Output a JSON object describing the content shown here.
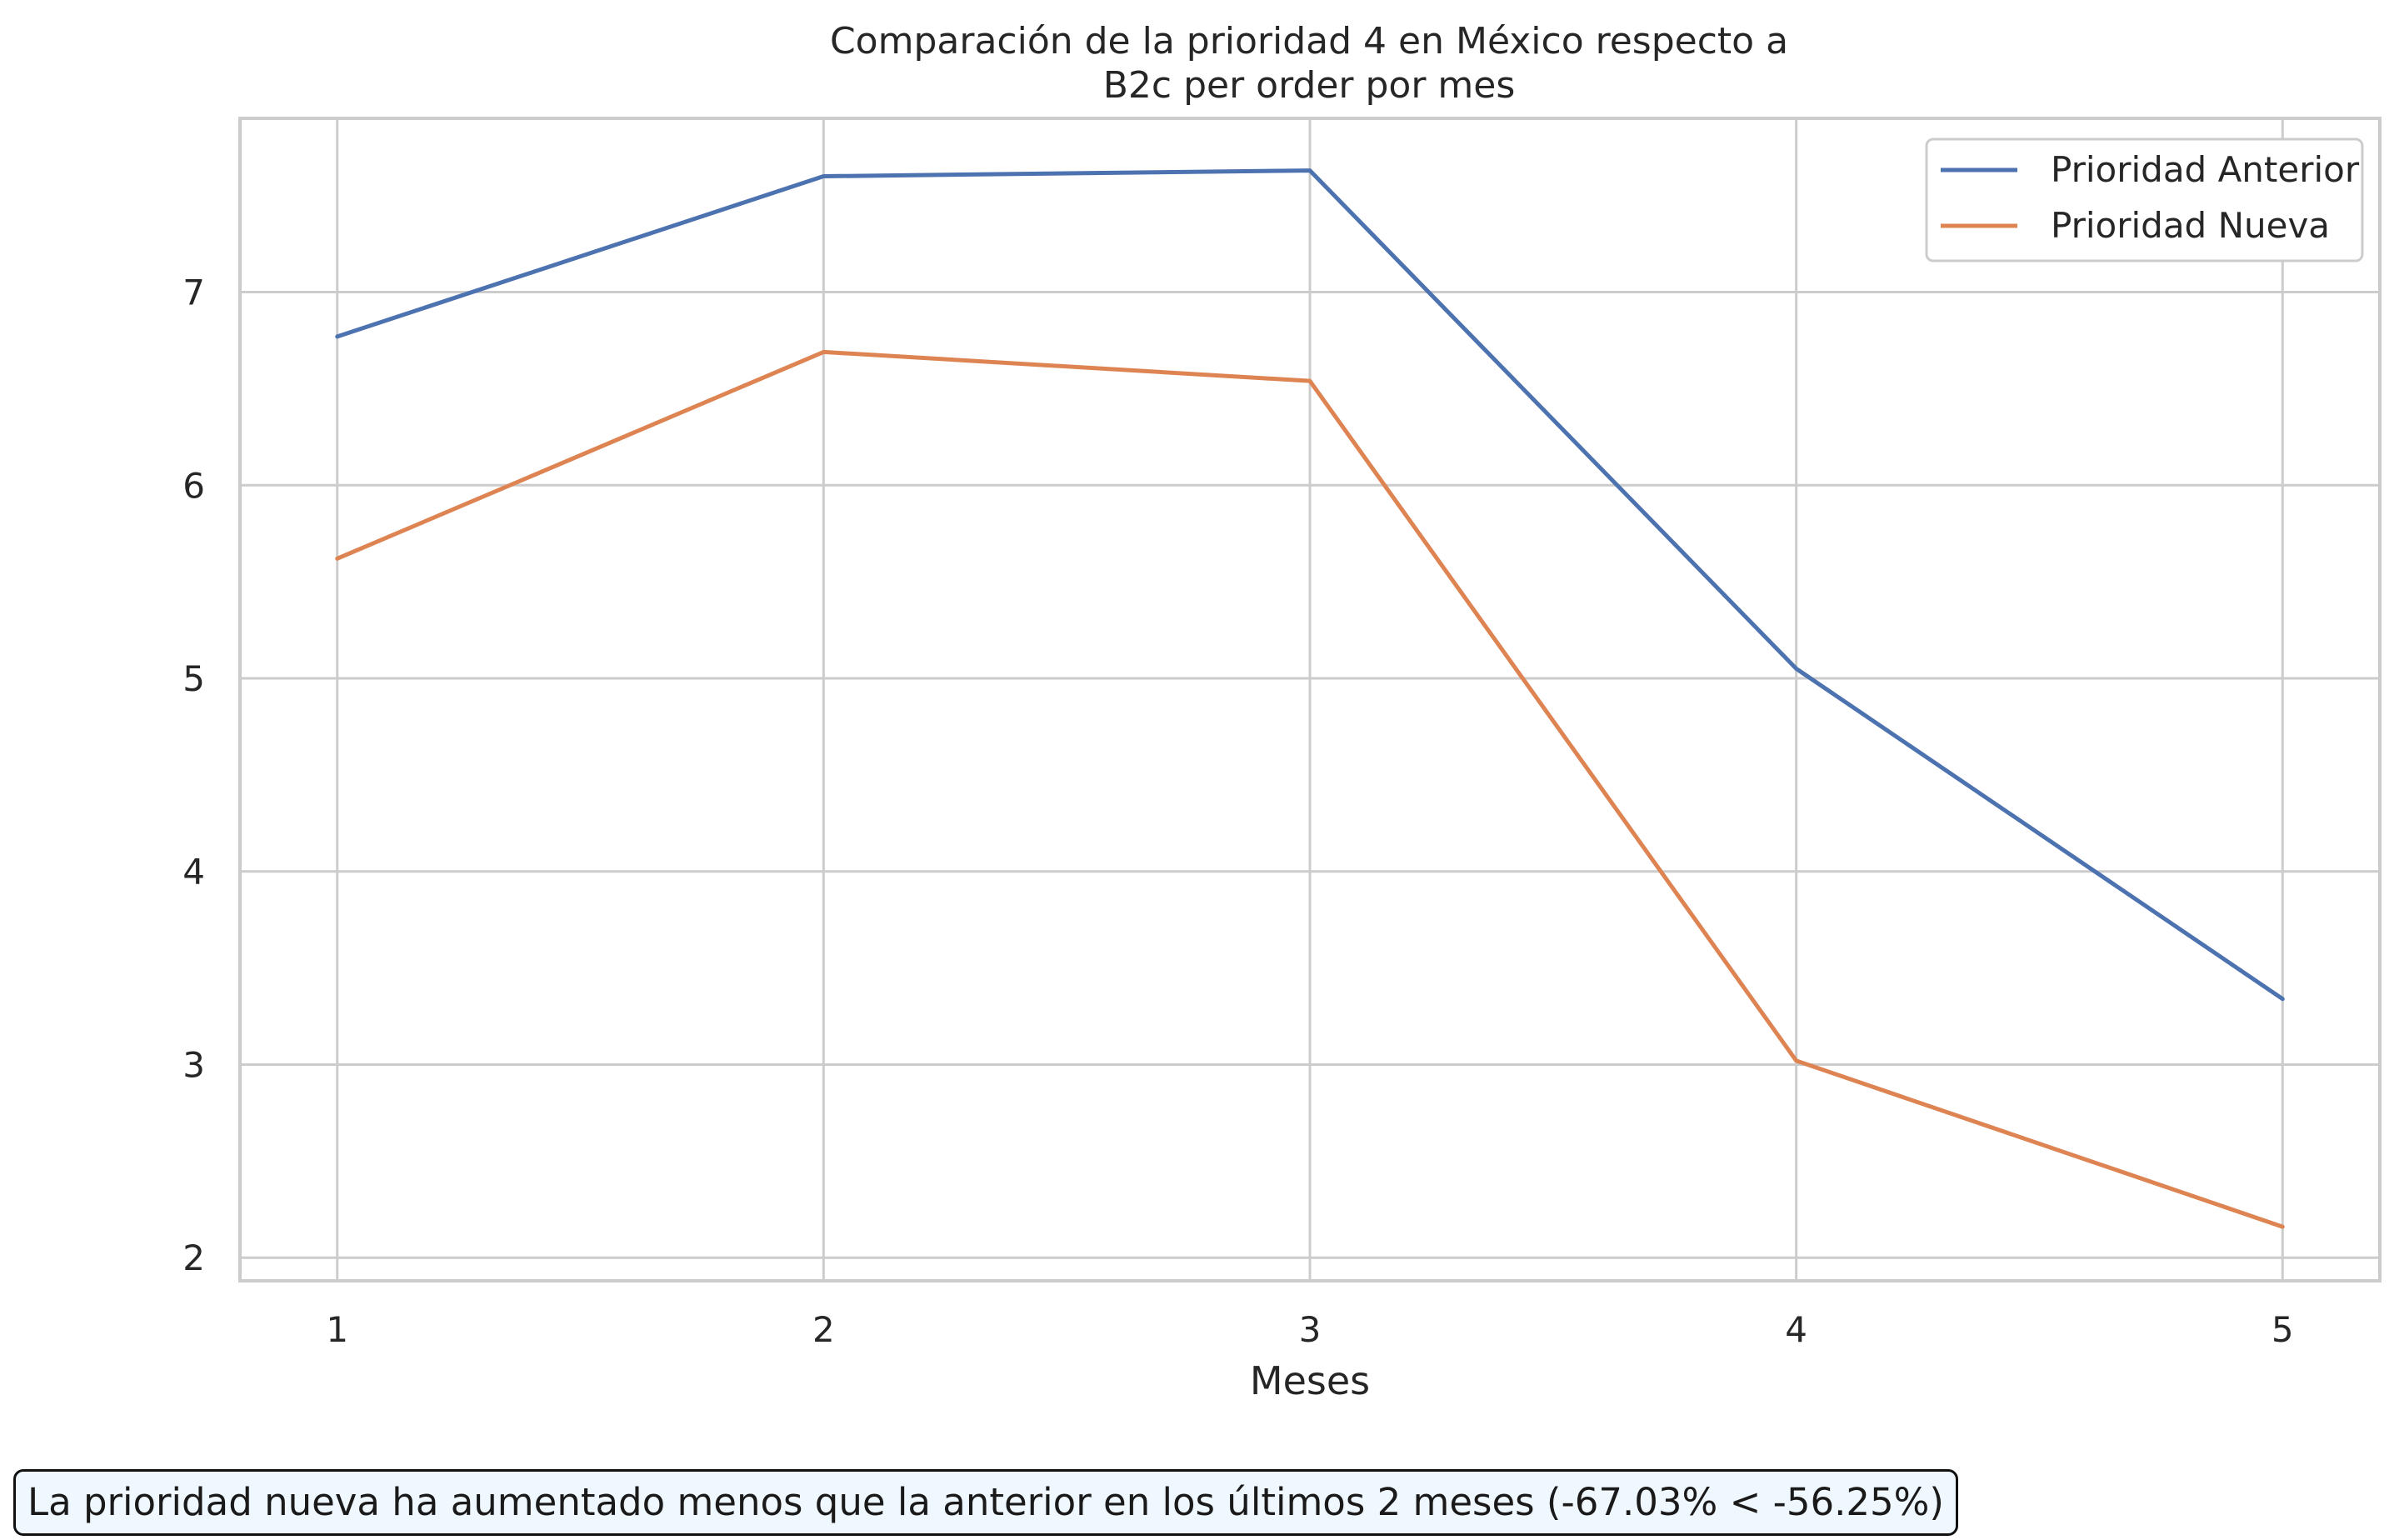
{
  "chart_data": {
    "type": "line",
    "title_line1": "Comparación de la prioridad 4 en México respecto a",
    "title_line2": "B2c per order por mes",
    "xlabel": "Meses",
    "ylabel": "",
    "x": [
      1,
      2,
      3,
      4,
      5
    ],
    "x_ticks": [
      "1",
      "2",
      "3",
      "4",
      "5"
    ],
    "y_ticks": [
      "2",
      "3",
      "4",
      "5",
      "6",
      "7"
    ],
    "xlim": [
      0.8,
      5.2
    ],
    "ylim": [
      1.88,
      7.9
    ],
    "grid": true,
    "legend_position": "top-right",
    "series": [
      {
        "name": "Prioridad Anterior",
        "color": "#4c72b0",
        "values": [
          6.77,
          7.6,
          7.63,
          5.05,
          3.34
        ]
      },
      {
        "name": "Prioridad Nueva",
        "color": "#dd8452",
        "values": [
          5.62,
          6.69,
          6.54,
          3.02,
          2.16
        ]
      }
    ]
  },
  "annotation": {
    "text": "La prioridad nueva ha aumentado menos que la anterior en los últimos 2 meses (-67.03% < -56.25%)"
  }
}
